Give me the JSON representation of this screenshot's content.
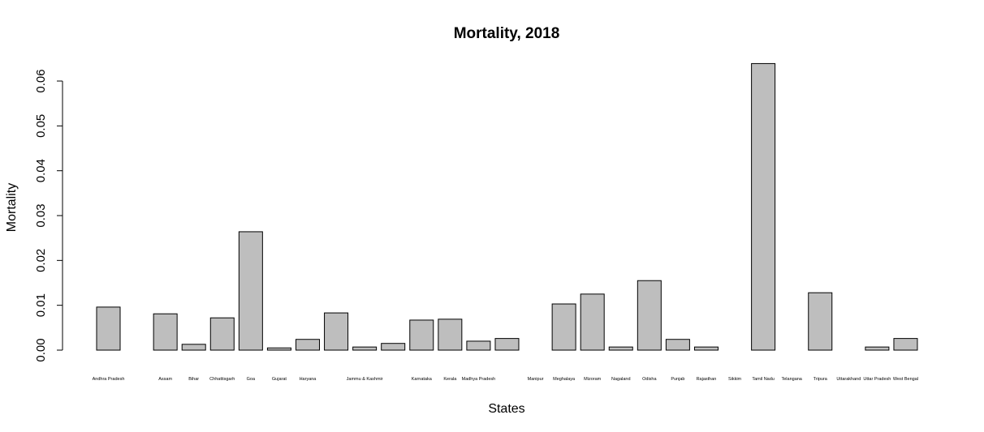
{
  "chart_data": {
    "type": "bar",
    "title": "Mortality, 2018",
    "xlabel": "States",
    "ylabel": "Mortality",
    "ylim": [
      0,
      0.06
    ],
    "yticks": [
      "0.00",
      "0.01",
      "0.02",
      "0.03",
      "0.04",
      "0.05",
      "0.06"
    ],
    "grid": false,
    "categories": [
      "Andhra Pradesh",
      "",
      "Assam",
      "Bihar",
      "Chhattisgarh",
      "Goa",
      "Gujarat",
      "Haryana",
      "",
      "Jammu & Kashmir",
      "",
      "Karnataka",
      "Kerala",
      "Madhya Pradesh",
      "",
      "Manipur",
      "Meghalaya",
      "Mizoram",
      "Nagaland",
      "Odisha",
      "Punjab",
      "Rajasthan",
      "Sikkim",
      "Tamil Nadu",
      "Telangana",
      "Tripura",
      "Uttarakhand",
      "Uttar Pradesh",
      "West Bengal"
    ],
    "values": [
      0.0096,
      0.0,
      0.0081,
      0.0013,
      0.0072,
      0.0264,
      0.0005,
      0.0024,
      0.0083,
      0.0007,
      0.0015,
      0.0067,
      0.0069,
      0.002,
      0.0026,
      0.0,
      0.0103,
      0.0125,
      0.0007,
      0.0155,
      0.0024,
      0.0007,
      0.0,
      0.0639,
      0.0,
      0.0128,
      0.0,
      0.0007,
      0.0026
    ]
  }
}
